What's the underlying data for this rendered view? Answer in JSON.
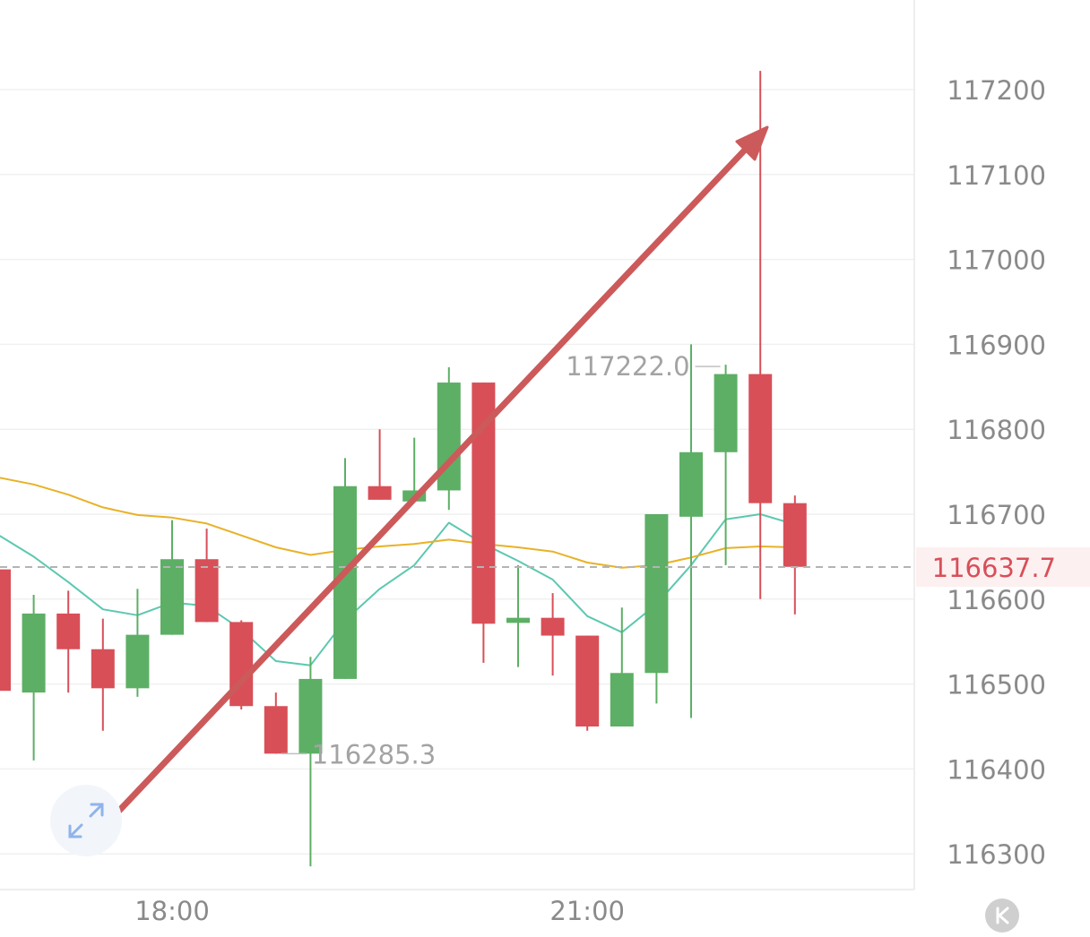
{
  "chart_data": {
    "type": "candlestick",
    "title": "",
    "xlabel": "",
    "ylabel": "",
    "ylim": [
      116265,
      117290
    ],
    "y_ticks": [
      117200,
      117100,
      117000,
      116900,
      116800,
      116700,
      116600,
      116500,
      116400,
      116300
    ],
    "y_tick_labels": [
      "117200",
      "117100",
      "117000",
      "116900",
      "116800",
      "116700",
      "116600",
      "116500",
      "116400",
      "116300"
    ],
    "x_tick_labels": [
      {
        "label": "18:00",
        "index": 5
      },
      {
        "label": "21:00",
        "index": 17
      }
    ],
    "current_price": 116637.7,
    "current_price_label": "116637.7",
    "high_label": "117222.0",
    "low_label": "116285.3",
    "high_index": 21,
    "low_index": 8,
    "candles": [
      {
        "open": 116635,
        "high": 116640,
        "close": 116492,
        "low": 116490
      },
      {
        "open": 116490,
        "high": 116605,
        "close": 116583,
        "low": 116410
      },
      {
        "open": 116583,
        "high": 116610,
        "close": 116541,
        "low": 116490
      },
      {
        "open": 116541,
        "high": 116577,
        "close": 116495,
        "low": 116445
      },
      {
        "open": 116495,
        "high": 116612,
        "close": 116558,
        "low": 116485
      },
      {
        "open": 116558,
        "high": 116693,
        "close": 116647,
        "low": 116558
      },
      {
        "open": 116647,
        "high": 116683,
        "close": 116573,
        "low": 116573
      },
      {
        "open": 116573,
        "high": 116575,
        "close": 116474,
        "low": 116470
      },
      {
        "open": 116474,
        "high": 116490,
        "close": 116418,
        "low": 116418
      },
      {
        "open": 116418,
        "high": 116532,
        "close": 116506,
        "low": 116285.3
      },
      {
        "open": 116506,
        "high": 116766,
        "close": 116733,
        "low": 116506
      },
      {
        "open": 116733,
        "high": 116800,
        "close": 116717,
        "low": 116717
      },
      {
        "open": 116715,
        "high": 116790,
        "close": 116728,
        "low": 116715
      },
      {
        "open": 116728,
        "high": 116873,
        "close": 116855,
        "low": 116705
      },
      {
        "open": 116855,
        "high": 116855,
        "close": 116571,
        "low": 116525
      },
      {
        "open": 116572,
        "high": 116640,
        "close": 116578,
        "low": 116520
      },
      {
        "open": 116578,
        "high": 116607,
        "close": 116557,
        "low": 116510
      },
      {
        "open": 116557,
        "high": 116557,
        "close": 116450,
        "low": 116445
      },
      {
        "open": 116450,
        "high": 116590,
        "close": 116513,
        "low": 116450
      },
      {
        "open": 116513,
        "high": 116700,
        "close": 116700,
        "low": 116477
      },
      {
        "open": 116697,
        "high": 116900,
        "close": 116773,
        "low": 116460
      },
      {
        "open": 116773,
        "high": 116876,
        "close": 116865,
        "low": 116640
      },
      {
        "open": 116865,
        "high": 117222.0,
        "close": 116713,
        "low": 116600
      },
      {
        "open": 116713,
        "high": 116722,
        "close": 116638,
        "low": 116582
      }
    ],
    "series": [
      {
        "type": "line",
        "color": "#5cc8b0",
        "values": [
          116675,
          116650,
          116620,
          116588,
          116581,
          116596,
          116592,
          116564,
          116527,
          116522,
          116575,
          116612,
          116640,
          116690,
          116665,
          116645,
          116623,
          116580,
          116561,
          116594,
          116640,
          116694,
          116700,
          116688
        ]
      },
      {
        "type": "line",
        "color": "#e8b228",
        "values": [
          116743,
          116735,
          116723,
          116708,
          116699,
          116696,
          116689,
          116675,
          116661,
          116652,
          116658,
          116662,
          116665,
          116670,
          116665,
          116661,
          116656,
          116643,
          116637,
          116640,
          116649,
          116660,
          116662,
          116661
        ]
      }
    ],
    "up_color": "#5daf65",
    "down_color": "#d84f58",
    "price_line_color": "#b4b4b4",
    "price_tag_bg": "#fdf0f0",
    "annotation_arrow_color": "#cc5a5a"
  }
}
